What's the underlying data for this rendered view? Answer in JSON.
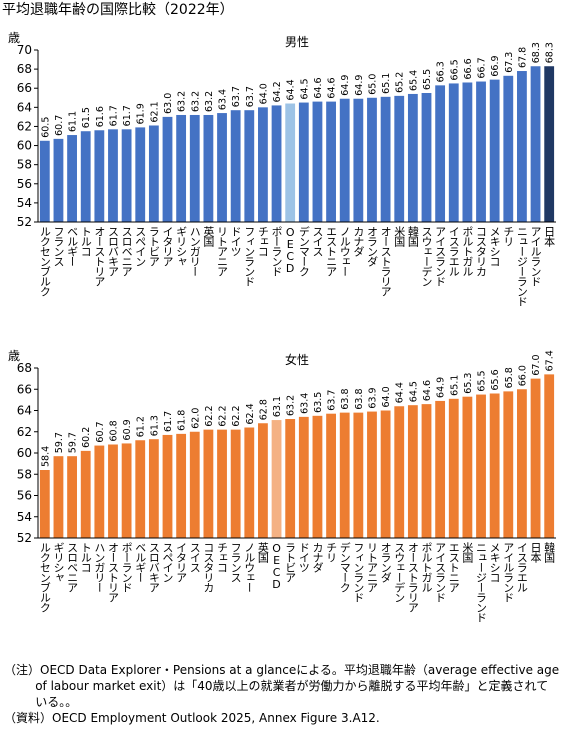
{
  "title": "平均退職年齢の国際比較（2022年）",
  "notes": [
    "（注）OECD Data Explorer・Pensions at a glanceによる。平均退職年齢（average effective age of labour market exit）は「40歳以上の就業者が労働力から離脱する平均年齢」と定義されている。。",
    "（資料）OECD Employment Outlook 2025, Annex Figure 3.A12."
  ],
  "chart_data": [
    {
      "type": "bar",
      "title": "男性",
      "ylabel": "歳",
      "categories": [
        "ルクセンブルク",
        "フランス",
        "ベルギー",
        "トルコ",
        "オーストリア",
        "スロバキア",
        "スロベニア",
        "スペイン",
        "ラトビア",
        "イタリア",
        "ギリシャ",
        "ハンガリー",
        "英国",
        "リトアニア",
        "ドイツ",
        "フィンランド",
        "チェコ",
        "ポーランド",
        "OECD",
        "デンマーク",
        "スイス",
        "エストニア",
        "ノルウェー",
        "カナダ",
        "オランダ",
        "オーストラリア",
        "米国",
        "韓国",
        "スウェーデン",
        "アイスランド",
        "イスラエル",
        "ポルトガル",
        "コスタリカ",
        "メキシコ",
        "チリ",
        "ニュージーランド",
        "アイルランド",
        "日本"
      ],
      "values": [
        60.5,
        60.7,
        61.1,
        61.5,
        61.6,
        61.7,
        61.7,
        61.9,
        62.1,
        63.0,
        63.2,
        63.2,
        63.2,
        63.4,
        63.7,
        63.7,
        64.0,
        64.2,
        64.4,
        64.5,
        64.6,
        64.6,
        64.9,
        64.9,
        65.0,
        65.1,
        65.2,
        65.4,
        65.5,
        66.3,
        66.5,
        66.6,
        66.7,
        66.9,
        67.3,
        67.8,
        68.3,
        68.3
      ],
      "value_labels": [
        "60.5",
        "60.7",
        "61.1",
        "61.5",
        "61.6",
        "61.7",
        "61.7",
        "61.9",
        "62.1",
        "63.0",
        "63.2",
        "63.2",
        "63.2",
        "63.4",
        "63.7",
        "63.7",
        "64.0",
        "64.2",
        "64.4",
        "64.5",
        "64.6",
        "64.6",
        "64.9",
        "64.9",
        "65.0",
        "65.1",
        "65.2",
        "65.4",
        "65.5",
        "66.3",
        "66.5",
        "66.6",
        "66.7",
        "66.9",
        "67.3",
        "67.8",
        "68.3",
        "68.3"
      ],
      "colors": [
        "#4472c4",
        "#4472c4",
        "#4472c4",
        "#4472c4",
        "#4472c4",
        "#4472c4",
        "#4472c4",
        "#4472c4",
        "#4472c4",
        "#4472c4",
        "#4472c4",
        "#4472c4",
        "#4472c4",
        "#4472c4",
        "#4472c4",
        "#4472c4",
        "#4472c4",
        "#4472c4",
        "#9dc3e6",
        "#4472c4",
        "#4472c4",
        "#4472c4",
        "#4472c4",
        "#4472c4",
        "#4472c4",
        "#4472c4",
        "#4472c4",
        "#4472c4",
        "#4472c4",
        "#4472c4",
        "#4472c4",
        "#4472c4",
        "#4472c4",
        "#4472c4",
        "#4472c4",
        "#4472c4",
        "#4472c4",
        "#1f3864"
      ],
      "ylim": [
        52,
        70
      ],
      "yticks": [
        52,
        54,
        56,
        58,
        60,
        62,
        64,
        66,
        68,
        70
      ]
    },
    {
      "type": "bar",
      "title": "女性",
      "ylabel": "歳",
      "categories": [
        "ルクセンブルク",
        "ギリシャ",
        "スロベニア",
        "トルコ",
        "ハンガリー",
        "オーストリア",
        "ポーランド",
        "ベルギー",
        "スロバキア",
        "スペイン",
        "イタリア",
        "スイス",
        "コスタリカ",
        "チェコ",
        "フランス",
        "ノルウェー",
        "英国",
        "OECD",
        "ラトビア",
        "ドイツ",
        "カナダ",
        "チリ",
        "デンマーク",
        "フィンランド",
        "リトアニア",
        "オランダ",
        "スウェーデン",
        "オーストラリア",
        "ポルトガル",
        "アイスランド",
        "エストニア",
        "米国",
        "ニュージーランド",
        "メキシコ",
        "アイルランド",
        "イスラエル",
        "日本",
        "韓国"
      ],
      "values": [
        58.4,
        59.7,
        59.7,
        60.2,
        60.7,
        60.8,
        60.9,
        61.2,
        61.3,
        61.7,
        61.8,
        62.0,
        62.2,
        62.2,
        62.2,
        62.4,
        62.8,
        63.1,
        63.2,
        63.4,
        63.5,
        63.7,
        63.8,
        63.8,
        63.9,
        64.0,
        64.4,
        64.5,
        64.6,
        64.9,
        65.1,
        65.3,
        65.5,
        65.6,
        65.8,
        66.0,
        67.0,
        67.4
      ],
      "value_labels": [
        "58.4",
        "59.7",
        "59.7",
        "60.2",
        "60.7",
        "60.8",
        "60.9",
        "61.2",
        "61.3",
        "61.7",
        "61.8",
        "62.0",
        "62.2",
        "62.2",
        "62.2",
        "62.4",
        "62.8",
        "63.1",
        "63.2",
        "63.4",
        "63.5",
        "63.7",
        "63.8",
        "63.8",
        "63.9",
        "64.0",
        "64.4",
        "64.5",
        "64.6",
        "64.9",
        "65.1",
        "65.3",
        "65.5",
        "65.6",
        "65.8",
        "66.0",
        "67.0",
        "67.4"
      ],
      "colors": [
        "#ed7d31",
        "#ed7d31",
        "#ed7d31",
        "#ed7d31",
        "#ed7d31",
        "#ed7d31",
        "#ed7d31",
        "#ed7d31",
        "#ed7d31",
        "#ed7d31",
        "#ed7d31",
        "#ed7d31",
        "#ed7d31",
        "#ed7d31",
        "#ed7d31",
        "#ed7d31",
        "#ed7d31",
        "#f4b183",
        "#ed7d31",
        "#ed7d31",
        "#ed7d31",
        "#ed7d31",
        "#ed7d31",
        "#ed7d31",
        "#ed7d31",
        "#ed7d31",
        "#ed7d31",
        "#ed7d31",
        "#ed7d31",
        "#ed7d31",
        "#ed7d31",
        "#ed7d31",
        "#ed7d31",
        "#ed7d31",
        "#ed7d31",
        "#ed7d31",
        "#ed7d31",
        "#ed7d31"
      ],
      "ylim": [
        52,
        68
      ],
      "yticks": [
        52,
        54,
        56,
        58,
        60,
        62,
        64,
        66,
        68
      ]
    }
  ]
}
